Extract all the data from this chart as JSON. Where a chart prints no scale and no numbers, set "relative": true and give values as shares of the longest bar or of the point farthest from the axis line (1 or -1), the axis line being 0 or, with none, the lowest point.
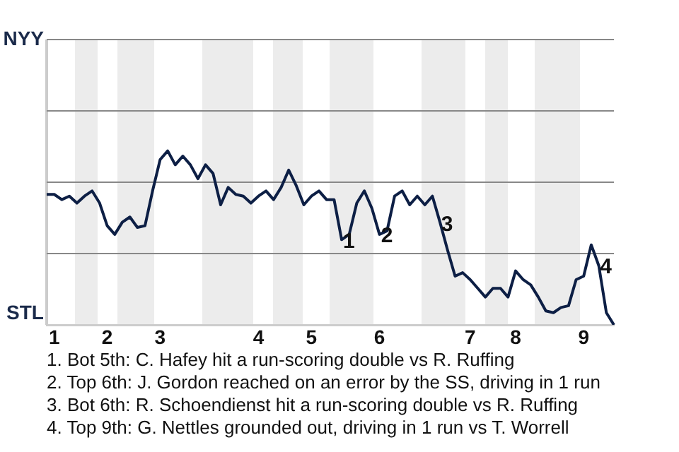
{
  "chart_data": {
    "type": "line",
    "relative": true,
    "categories": [
      null,
      "1",
      null,
      null,
      null,
      null,
      null,
      null,
      "2",
      null,
      null,
      null,
      null,
      null,
      null,
      "3",
      null,
      null,
      null,
      null,
      null,
      null,
      null,
      null,
      null,
      null,
      null,
      null,
      "4",
      null,
      null,
      null,
      null,
      null,
      null,
      "5",
      null,
      null,
      null,
      null,
      null,
      null,
      null,
      null,
      "6",
      null,
      null,
      null,
      null,
      null,
      null,
      null,
      null,
      null,
      null,
      null,
      "7",
      null,
      null,
      null,
      null,
      null,
      "8",
      null,
      null,
      null,
      null,
      null,
      null,
      null,
      null,
      "9",
      null,
      null,
      null,
      null
    ],
    "series": [
      {
        "color": "#0d1f45",
        "values": [
          0.75,
          0.75,
          0.72,
          0.74,
          0.7,
          0.74,
          0.77,
          0.7,
          0.57,
          0.52,
          0.59,
          0.62,
          0.56,
          0.57,
          0.77,
          0.95,
          1,
          0.92,
          0.97,
          0.92,
          0.84,
          0.92,
          0.87,
          0.69,
          0.79,
          0.75,
          0.74,
          0.7,
          0.74,
          0.77,
          0.72,
          0.79,
          0.89,
          0.8,
          0.69,
          0.74,
          0.77,
          0.72,
          0.72,
          0.49,
          0.52,
          0.7,
          0.77,
          0.67,
          0.52,
          0.54,
          0.74,
          0.77,
          0.69,
          0.74,
          0.69,
          0.74,
          0.59,
          0.43,
          0.28,
          0.3,
          0.26,
          0.21,
          0.16,
          0.21,
          0.21,
          0.16,
          0.31,
          0.26,
          0.23,
          0.16,
          0.08,
          0.07,
          0.1,
          0.11,
          0.26,
          0.28,
          0.46,
          0.34,
          0.07,
          0
        ]
      }
    ],
    "ref_lines": [
      {
        "axis": "y",
        "value": 0.41,
        "color": "#888888"
      },
      {
        "axis": "y",
        "value": 0.82,
        "color": "#888888"
      },
      {
        "axis": "y",
        "value": 1.23,
        "color": "#888888"
      },
      {
        "axis": "y",
        "value": 1.64,
        "color": "#888888"
      }
    ],
    "marker": "none",
    "line_style": "solid",
    "annotations": [
      "NYY",
      "STL",
      "1",
      "2",
      "3",
      "4",
      "1. Bot 5th: C. Hafey hit a run-scoring double vs R. Ruffing",
      "2. Top 6th: J. Gordon reached on an error by the SS, driving in 1 run",
      "3. Bot 6th: R. Schoendienst hit a run-scoring double vs R. Ruffing",
      "4. Top 9th: G. Nettles grounded out, driving in 1 run vs T. Worrell"
    ]
  }
}
